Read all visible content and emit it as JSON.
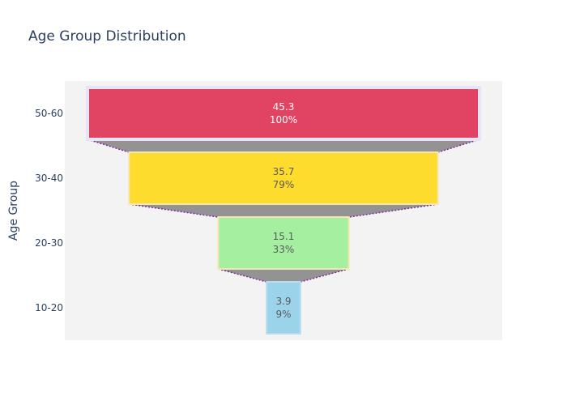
{
  "chart_data": {
    "type": "funnel",
    "title": "Age Group Distribution",
    "xlabel": "",
    "ylabel": "Age Group",
    "categories": [
      "50-60",
      "30-40",
      "20-30",
      "10-20"
    ],
    "values": [
      45.3,
      35.7,
      15.1,
      3.9
    ],
    "percent_labels": [
      "100%",
      "79%",
      "33%",
      "9%"
    ],
    "bar_colors": [
      "#e04462",
      "#fddc2e",
      "#a4f0a0",
      "#9bd4ea"
    ],
    "bar_outline_colors": [
      "#e8e4f7",
      "#f6e6b2",
      "#f6e6b2",
      "#b8dcee"
    ],
    "label_colors": [
      "#ffffff",
      "#5a5a5a",
      "#5a5a5a",
      "#5a5a5a"
    ],
    "connector_color": "#939393",
    "connector_line_color": "#7f2a9c",
    "plot_background": "#f3f3f3",
    "grid": false,
    "legend": "none"
  }
}
